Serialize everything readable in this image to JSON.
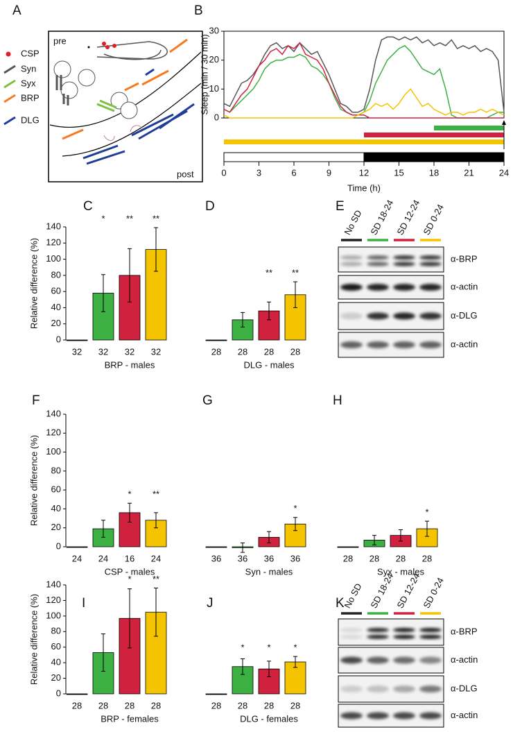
{
  "chart_data": [
    {
      "type": "line",
      "panel": "B",
      "ylabel": "Sleep (min / 30 min)",
      "xlabel": "Time (h)",
      "x": [
        0,
        0.5,
        1,
        1.5,
        2,
        2.5,
        3,
        3.5,
        4,
        4.5,
        5,
        5.5,
        6,
        6.5,
        7,
        7.5,
        8,
        8.5,
        9,
        9.5,
        10,
        10.5,
        11,
        11.5,
        12,
        12.5,
        13,
        13.5,
        14,
        14.5,
        15,
        15.5,
        16,
        16.5,
        17,
        17.5,
        18,
        18.5,
        19,
        19.5,
        20,
        20.5,
        21,
        21.5,
        22,
        22.5,
        23,
        23.5,
        24
      ],
      "series": [
        {
          "color": "#555555",
          "values": [
            5,
            4,
            8,
            12,
            13,
            15,
            18,
            22,
            25,
            26,
            24,
            25,
            23,
            26,
            24,
            22,
            23,
            19,
            15,
            10,
            5,
            4,
            2,
            2,
            3,
            10,
            20,
            27,
            28,
            28,
            27,
            28,
            27,
            28,
            26,
            27,
            25,
            26,
            25,
            27,
            24,
            25,
            24,
            25,
            23,
            24,
            23,
            20,
            2
          ]
        },
        {
          "color": "#3cb043",
          "values": [
            3,
            2,
            4,
            6,
            8,
            10,
            13,
            17,
            19,
            20,
            20,
            21,
            21,
            22,
            21,
            18,
            17,
            15,
            12,
            7,
            3,
            2,
            1,
            1,
            2,
            6,
            12,
            16,
            20,
            22,
            24,
            25,
            23,
            20,
            17,
            16,
            15,
            17,
            10,
            1,
            0,
            0,
            0,
            0,
            0,
            0,
            1,
            2,
            2
          ]
        },
        {
          "color": "#d0213f",
          "values": [
            3,
            2,
            5,
            8,
            10,
            14,
            18,
            20,
            23,
            24,
            22,
            25,
            24,
            26,
            22,
            21,
            20,
            17,
            12,
            8,
            4,
            2,
            1,
            1,
            1,
            0,
            0,
            0,
            0,
            0,
            0,
            0,
            0,
            0,
            0,
            0,
            0,
            0,
            0,
            0,
            0,
            0,
            0,
            0,
            0,
            0,
            0,
            0,
            0
          ]
        },
        {
          "color": "#f5c400",
          "values": [
            1,
            0,
            0,
            0,
            0,
            0,
            0,
            0,
            0,
            0,
            0,
            0,
            0,
            0,
            0,
            0,
            0,
            0,
            0,
            0,
            0,
            0,
            0,
            1,
            2,
            3,
            5,
            4,
            5,
            3,
            5,
            8,
            10,
            7,
            4,
            5,
            3,
            2,
            1,
            2,
            2,
            1,
            2,
            2,
            3,
            2,
            3,
            2,
            1
          ]
        }
      ],
      "periods": [
        {
          "color": "#3cb043",
          "start": 18,
          "end": 24
        },
        {
          "color": "#d0213f",
          "start": 12,
          "end": 24
        },
        {
          "color": "#f5c400",
          "start": 0,
          "end": 24
        }
      ],
      "light_dark": [
        {
          "color": "#ffffff",
          "start": 0,
          "end": 12
        },
        {
          "color": "#000000",
          "start": 12,
          "end": 24
        }
      ],
      "xlim": [
        0,
        24
      ],
      "xticks": [
        0,
        3,
        6,
        9,
        12,
        15,
        18,
        21,
        24
      ],
      "ylim": [
        0,
        30
      ],
      "yticks": [
        0,
        10,
        20,
        30
      ]
    },
    {
      "type": "bar",
      "panel": "C",
      "ylabel": "Relative difference (%)",
      "xlabel": "BRP - males",
      "categories": [
        "32",
        "32",
        "32",
        "32"
      ],
      "values": [
        0,
        58,
        80,
        112
      ],
      "errors": [
        0,
        23,
        33,
        27
      ],
      "significance": [
        null,
        "*",
        "**",
        "**"
      ],
      "colors": [
        "#000000",
        "#3cb043",
        "#d0213f",
        "#f5c400"
      ],
      "ylim": [
        0,
        140
      ],
      "yticks": [
        0,
        20,
        40,
        60,
        80,
        100,
        120,
        140
      ]
    },
    {
      "type": "bar",
      "panel": "D",
      "xlabel": "DLG - males",
      "categories": [
        "28",
        "28",
        "28",
        "28"
      ],
      "values": [
        0,
        25,
        36,
        56
      ],
      "errors": [
        0,
        9,
        11,
        16
      ],
      "significance": [
        null,
        null,
        "**",
        "**"
      ],
      "colors": [
        "#000000",
        "#3cb043",
        "#d0213f",
        "#f5c400"
      ],
      "ylim": [
        0,
        140
      ]
    },
    {
      "type": "bar",
      "panel": "F",
      "ylabel": "Relative difference (%)",
      "xlabel": "CSP - males",
      "categories": [
        "24",
        "24",
        "16",
        "24"
      ],
      "values": [
        0,
        19,
        36,
        28
      ],
      "errors": [
        0,
        9,
        10,
        8
      ],
      "significance": [
        null,
        null,
        "*",
        "**"
      ],
      "colors": [
        "#000000",
        "#3cb043",
        "#d0213f",
        "#f5c400"
      ],
      "ylim": [
        0,
        140
      ],
      "yticks": [
        0,
        20,
        40,
        60,
        80,
        100,
        120,
        140
      ]
    },
    {
      "type": "bar",
      "panel": "G",
      "xlabel": "Syn - males",
      "categories": [
        "36",
        "36",
        "36",
        "36"
      ],
      "values": [
        0,
        -1,
        10,
        24
      ],
      "errors": [
        0,
        5,
        6,
        7
      ],
      "significance": [
        null,
        null,
        null,
        "*"
      ],
      "colors": [
        "#000000",
        "#3cb043",
        "#d0213f",
        "#f5c400"
      ],
      "ylim": [
        0,
        140
      ]
    },
    {
      "type": "bar",
      "panel": "H",
      "xlabel": "Syx - males",
      "categories": [
        "28",
        "28",
        "28",
        "28"
      ],
      "values": [
        0,
        7,
        12,
        19
      ],
      "errors": [
        0,
        5,
        6,
        8
      ],
      "significance": [
        null,
        null,
        null,
        "*"
      ],
      "colors": [
        "#000000",
        "#3cb043",
        "#d0213f",
        "#f5c400"
      ],
      "ylim": [
        0,
        140
      ]
    },
    {
      "type": "bar",
      "panel": "I",
      "ylabel": "Relative difference (%)",
      "xlabel": "BRP - females",
      "categories": [
        "28",
        "28",
        "28",
        "28"
      ],
      "values": [
        0,
        53,
        97,
        105
      ],
      "errors": [
        0,
        24,
        38,
        31
      ],
      "significance": [
        null,
        null,
        "*",
        "**"
      ],
      "colors": [
        "#000000",
        "#3cb043",
        "#d0213f",
        "#f5c400"
      ],
      "ylim": [
        0,
        140
      ],
      "yticks": [
        0,
        20,
        40,
        60,
        80,
        100,
        120,
        140
      ]
    },
    {
      "type": "bar",
      "panel": "J",
      "xlabel": "DLG - females",
      "categories": [
        "28",
        "28",
        "28",
        "28"
      ],
      "values": [
        0,
        35,
        32,
        41
      ],
      "errors": [
        0,
        10,
        10,
        7
      ],
      "significance": [
        null,
        "*",
        "*",
        "*"
      ],
      "colors": [
        "#000000",
        "#3cb043",
        "#d0213f",
        "#f5c400"
      ],
      "ylim": [
        0,
        140
      ]
    }
  ],
  "diagram": {
    "panel": "A",
    "pre": "pre",
    "post": "post",
    "legend": [
      {
        "label": "CSP",
        "color": "#e31e24"
      },
      {
        "label": "Syn",
        "color": "#555555"
      },
      {
        "label": "Syx",
        "color": "#7ac143"
      },
      {
        "label": "BRP",
        "color": "#f47b20"
      },
      {
        "label": "DLG",
        "color": "#1f3d99"
      }
    ]
  },
  "blots": [
    {
      "panel": "E",
      "lanes": [
        {
          "label": "No SD",
          "color": "#222222"
        },
        {
          "label": "SD 18-24",
          "color": "#3cb043"
        },
        {
          "label": "SD 12-24",
          "color": "#d0213f"
        },
        {
          "label": "SD 0-24",
          "color": "#f5c400"
        }
      ],
      "rows": [
        "α-BRP",
        "α-actin",
        "α-DLG",
        "α-actin"
      ]
    },
    {
      "panel": "K",
      "lanes": [
        {
          "label": "No SD",
          "color": "#222222"
        },
        {
          "label": "SD 18-24",
          "color": "#3cb043"
        },
        {
          "label": "SD 12-24",
          "color": "#d0213f"
        },
        {
          "label": "SD 0-24",
          "color": "#f5c400"
        }
      ],
      "rows": [
        "α-BRP",
        "α-actin",
        "α-DLG",
        "α-actin"
      ]
    }
  ]
}
